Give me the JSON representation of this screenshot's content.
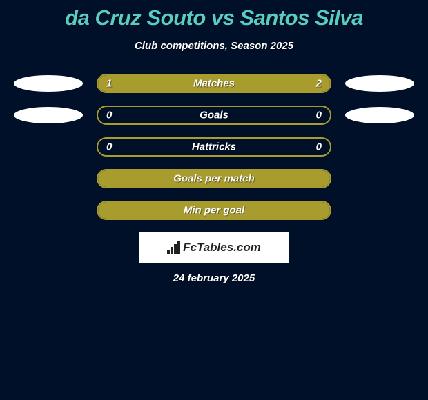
{
  "title": "da Cruz Souto vs Santos Silva",
  "subtitle": "Club competitions, Season 2025",
  "logo_text": "FcTables.com",
  "date": "24 february 2025",
  "colors": {
    "background": "#001028",
    "title": "#5acdc1",
    "bar_border": "#a99c2f",
    "bar_fill": "#a99c2f",
    "text": "#ffffff"
  },
  "rows": [
    {
      "label": "Matches",
      "left_value": "1",
      "right_value": "2",
      "left_pct": 33,
      "right_pct": 67,
      "show_avatars": true
    },
    {
      "label": "Goals",
      "left_value": "0",
      "right_value": "0",
      "left_pct": 0,
      "right_pct": 0,
      "show_avatars": true
    },
    {
      "label": "Hattricks",
      "left_value": "0",
      "right_value": "0",
      "left_pct": 0,
      "right_pct": 0,
      "show_avatars": false
    },
    {
      "label": "Goals per match",
      "left_value": "",
      "right_value": "",
      "left_pct": 100,
      "right_pct": 0,
      "full": true,
      "show_avatars": false
    },
    {
      "label": "Min per goal",
      "left_value": "",
      "right_value": "",
      "left_pct": 100,
      "right_pct": 0,
      "full": true,
      "show_avatars": false
    }
  ]
}
